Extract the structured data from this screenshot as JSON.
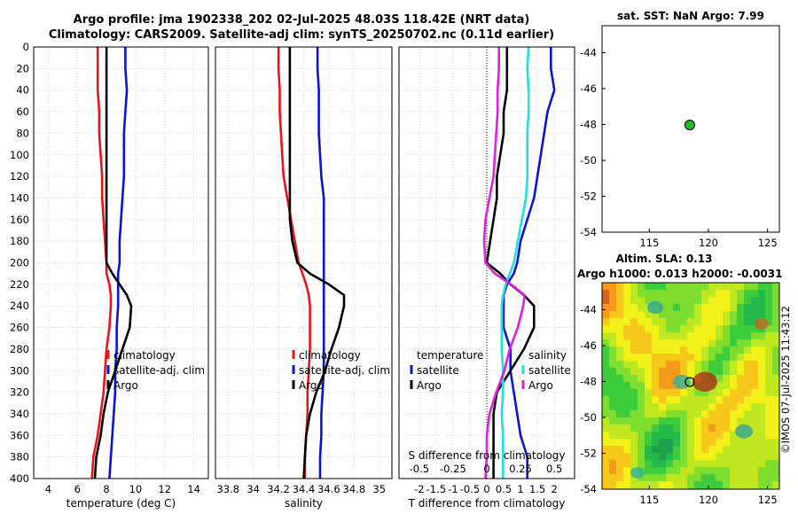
{
  "header": {
    "title_line1": "Argo profile: jma 1902338_202 02-Jul-2025 48.03S 118.42E (NRT data)",
    "title_line2": "Climatology: CARS2009. Satellite-adj clim: synTS_20250702.nc (0.11d earlier)"
  },
  "colors": {
    "red": "#e8141b",
    "blue": "#0a14d0",
    "black": "#000000",
    "cyan": "#20e0e0",
    "magenta": "#e020e0"
  },
  "chart_data": [
    {
      "type": "line",
      "id": "temperature",
      "xlabel": "temperature (deg C)",
      "ylabel": "",
      "xlim": [
        3,
        15
      ],
      "ylim": [
        0,
        400
      ],
      "xticks": [
        "4",
        "6",
        "8",
        "10",
        "12",
        "14"
      ],
      "yticks": [
        "0",
        "20",
        "40",
        "60",
        "80",
        "100",
        "120",
        "140",
        "160",
        "180",
        "200",
        "220",
        "240",
        "260",
        "280",
        "300",
        "320",
        "340",
        "360",
        "380",
        "400"
      ],
      "depth": [
        0,
        20,
        40,
        60,
        80,
        100,
        120,
        140,
        160,
        180,
        200,
        210,
        220,
        230,
        240,
        260,
        280,
        300,
        320,
        340,
        360,
        380,
        400
      ],
      "series": [
        {
          "name": "climatology",
          "color": "red",
          "values": [
            7.4,
            7.4,
            7.4,
            7.5,
            7.5,
            7.6,
            7.7,
            7.7,
            7.8,
            7.9,
            8.0,
            8.0,
            8.2,
            8.3,
            8.3,
            8.2,
            8.0,
            7.9,
            7.8,
            7.6,
            7.4,
            7.1,
            7.0
          ]
        },
        {
          "name": "satellite-adj. clim",
          "color": "blue",
          "values": [
            9.3,
            9.3,
            9.4,
            9.3,
            9.2,
            9.2,
            9.2,
            9.1,
            9.0,
            8.9,
            8.9,
            8.8,
            8.8,
            8.8,
            8.8,
            8.7,
            8.7,
            8.6,
            8.6,
            8.5,
            8.4,
            8.3,
            8.2
          ]
        },
        {
          "name": "Argo",
          "color": "black",
          "values": [
            8.0,
            8.0,
            8.0,
            8.0,
            8.0,
            8.0,
            8.0,
            8.0,
            8.0,
            8.0,
            8.0,
            8.4,
            8.9,
            9.4,
            9.7,
            9.6,
            9.1,
            8.6,
            8.1,
            7.8,
            7.6,
            7.3,
            7.2
          ]
        }
      ]
    },
    {
      "type": "line",
      "id": "salinity",
      "xlabel": "salinity",
      "xlim": [
        33.7,
        35.1
      ],
      "ylim": [
        0,
        400
      ],
      "xticks": [
        "33.8",
        "34",
        "34.2",
        "34.4",
        "34.6",
        "34.8",
        "35"
      ],
      "depth": [
        0,
        20,
        40,
        60,
        80,
        100,
        120,
        140,
        160,
        180,
        200,
        210,
        220,
        230,
        240,
        260,
        280,
        300,
        320,
        340,
        360,
        380,
        400
      ],
      "series": [
        {
          "name": "climatology",
          "color": "red",
          "values": [
            34.2,
            34.2,
            34.21,
            34.21,
            34.22,
            34.23,
            34.24,
            34.27,
            34.3,
            34.33,
            34.36,
            34.39,
            34.42,
            34.44,
            34.45,
            34.45,
            34.45,
            34.44,
            34.43,
            34.43,
            34.42,
            34.41,
            34.41
          ]
        },
        {
          "name": "satellite-adj. clim",
          "color": "blue",
          "values": [
            34.51,
            34.51,
            34.52,
            34.52,
            34.52,
            34.53,
            34.54,
            34.56,
            34.56,
            34.56,
            34.56,
            34.56,
            34.56,
            34.56,
            34.56,
            34.56,
            34.56,
            34.56,
            34.55,
            34.54,
            34.54,
            34.53,
            34.53
          ]
        },
        {
          "name": "Argo",
          "color": "black",
          "values": [
            34.29,
            34.29,
            34.29,
            34.29,
            34.29,
            34.29,
            34.29,
            34.29,
            34.29,
            34.31,
            34.35,
            34.45,
            34.6,
            34.72,
            34.72,
            34.68,
            34.62,
            34.57,
            34.5,
            34.45,
            34.42,
            34.41,
            34.4
          ]
        }
      ]
    },
    {
      "type": "line",
      "id": "difference",
      "xlabel": "T difference from climatology",
      "xlabel_top": "S difference from climatology",
      "xlim": [
        -2.6,
        2.6
      ],
      "ylim": [
        0,
        400
      ],
      "xticks": [
        "-2",
        "-1.5",
        "-1",
        "-0.5",
        "0",
        "0.5",
        "1",
        "1.5",
        "2"
      ],
      "sticks": [
        "-0.5",
        "-0.25",
        "0",
        "0.25",
        "0.5"
      ],
      "depth": [
        0,
        20,
        40,
        60,
        80,
        100,
        120,
        140,
        160,
        180,
        200,
        210,
        220,
        230,
        240,
        260,
        280,
        300,
        320,
        340,
        360,
        380,
        400
      ],
      "series": [
        {
          "name": "temperature satellite",
          "color": "blue",
          "values": [
            1.9,
            1.9,
            2.0,
            1.8,
            1.7,
            1.6,
            1.5,
            1.4,
            1.2,
            1.0,
            0.9,
            0.8,
            0.6,
            0.5,
            0.5,
            0.5,
            0.7,
            0.7,
            0.8,
            0.9,
            1.0,
            1.2,
            1.2
          ]
        },
        {
          "name": "temperature Argo",
          "color": "black",
          "values": [
            0.6,
            0.6,
            0.6,
            0.5,
            0.5,
            0.4,
            0.3,
            0.3,
            0.2,
            0.1,
            0.0,
            0.4,
            0.7,
            1.1,
            1.4,
            1.4,
            1.1,
            0.7,
            0.3,
            0.2,
            0.2,
            0.2,
            0.2
          ]
        },
        {
          "name": "salinity satellite",
          "color": "cyan",
          "values": [
            0.31,
            0.3,
            0.31,
            0.31,
            0.3,
            0.3,
            0.3,
            0.29,
            0.26,
            0.23,
            0.2,
            0.17,
            0.14,
            0.12,
            0.11,
            0.11,
            0.11,
            0.12,
            0.12,
            0.11,
            0.12,
            0.12,
            0.12
          ]
        },
        {
          "name": "salinity Argo",
          "color": "magenta",
          "values": [
            0.09,
            0.09,
            0.08,
            0.08,
            0.07,
            0.06,
            0.05,
            0.02,
            -0.01,
            -0.02,
            -0.01,
            0.06,
            0.18,
            0.28,
            0.27,
            0.23,
            0.17,
            0.13,
            0.07,
            0.02,
            0.0,
            0.0,
            -0.01
          ]
        }
      ]
    },
    {
      "type": "scatter",
      "id": "sst_map",
      "title": "sat. SST: NaN Argo: 7.99",
      "xlim": [
        111,
        126
      ],
      "ylim": [
        -54,
        -42.5
      ],
      "xticks": [
        "115",
        "120",
        "125"
      ],
      "yticks": [
        "-44",
        "-46",
        "-48",
        "-50",
        "-52",
        "-54"
      ],
      "point": {
        "lon": 118.42,
        "lat": -48.03,
        "color": "#22c020"
      }
    },
    {
      "type": "heatmap",
      "id": "sla_map",
      "title1": "Altim. SLA: 0.13",
      "title2": "Argo h1000: 0.013 h2000: -0.0031",
      "xlim": [
        111,
        126
      ],
      "ylim": [
        -54,
        -42.5
      ],
      "xticks": [
        "115",
        "120",
        "125"
      ],
      "yticks": [
        "-44",
        "-46",
        "-48",
        "-50",
        "-52",
        "-54"
      ],
      "point": {
        "lon": 118.42,
        "lat": -48.03
      },
      "side_label": "©IMOS 07-Jul-2025 11:43:12"
    }
  ],
  "legends": {
    "temp_items": [
      "climatology",
      "satellite-adj. clim",
      "Argo"
    ],
    "diff_temp_header": "temperature",
    "diff_sal_header": "salinity",
    "diff_items": [
      "satellite",
      "Argo"
    ]
  }
}
